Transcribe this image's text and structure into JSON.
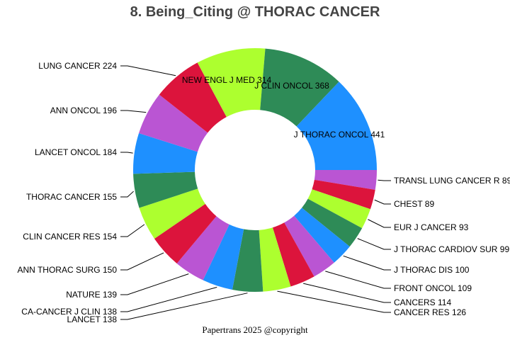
{
  "chart_data": {
    "type": "pie",
    "variant": "donut",
    "title": "8. Being_Citing @ THORAC CANCER",
    "categories": [
      "J THORAC ONCOL",
      "J CLIN ONCOL",
      "NEW ENGL J MED",
      "LUNG CANCER",
      "ANN ONCOL",
      "LANCET ONCOL",
      "THORAC CANCER",
      "CLIN CANCER RES",
      "ANN THORAC SURG",
      "NATURE",
      "CA-CANCER J CLIN",
      "LANCET",
      "CANCER RES",
      "CANCERS",
      "FRONT ONCOL",
      "J THORAC DIS",
      "J THORAC CARDIOV SUR",
      "EUR J CANCER",
      "CHEST",
      "TRANSL LUNG CANCER R"
    ],
    "values": [
      441,
      368,
      314,
      224,
      196,
      184,
      155,
      154,
      150,
      139,
      138,
      138,
      126,
      114,
      109,
      100,
      99,
      93,
      89,
      89
    ],
    "colors": [
      "#1E90FF",
      "#2E8B57",
      "#ADFF2F",
      "#DC143C",
      "#BA55D3"
    ],
    "legend": "none"
  },
  "footer": "Papertrans 2025 @copyright"
}
